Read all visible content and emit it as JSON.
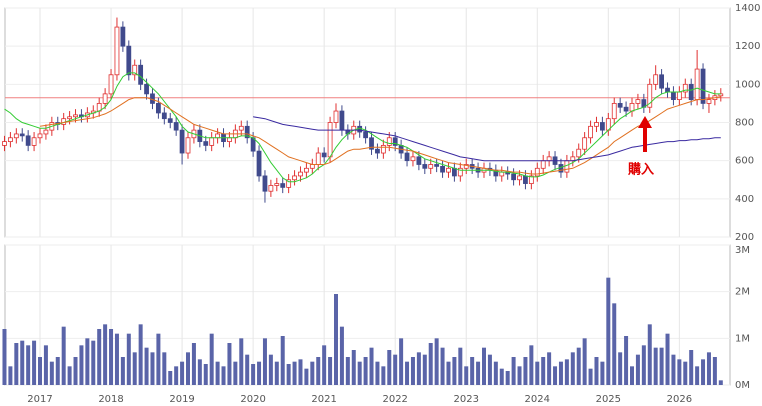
{
  "chart_data": [
    {
      "type": "candlestick",
      "categories": [
        null,
        null,
        null,
        null,
        null,
        null,
        "2017",
        null,
        null,
        null,
        null,
        null,
        null,
        null,
        null,
        null,
        null,
        null,
        "2018",
        null,
        null,
        null,
        null,
        null,
        null,
        null,
        null,
        null,
        null,
        null,
        "2019",
        null,
        null,
        null,
        null,
        null,
        null,
        null,
        null,
        null,
        null,
        null,
        "2020",
        null,
        null,
        null,
        null,
        null,
        null,
        null,
        null,
        null,
        null,
        null,
        "2021",
        null,
        null,
        null,
        null,
        null,
        null,
        null,
        null,
        null,
        null,
        null,
        "2022",
        null,
        null,
        null,
        null,
        null,
        null,
        null,
        null,
        null,
        null,
        null,
        "2023",
        null,
        null,
        null,
        null,
        null,
        null,
        null,
        null,
        null,
        null,
        null,
        "2024",
        null,
        null,
        null,
        null,
        null,
        null,
        null,
        null,
        null,
        null,
        null,
        "2025",
        null,
        null,
        null,
        null,
        null,
        null,
        null,
        null,
        null,
        null,
        null,
        "2026",
        null,
        null,
        null,
        null,
        null,
        null,
        null
      ],
      "open": [
        680,
        700,
        720,
        740,
        730,
        680,
        720,
        740,
        760,
        800,
        790,
        820,
        830,
        840,
        830,
        850,
        860,
        900,
        950,
        1050,
        1300,
        1200,
        1050,
        1100,
        1000,
        950,
        900,
        850,
        820,
        800,
        760,
        640,
        720,
        760,
        700,
        680,
        720,
        740,
        700,
        720,
        760,
        780,
        720,
        650,
        520,
        440,
        470,
        480,
        460,
        500,
        520,
        540,
        560,
        580,
        640,
        620,
        800,
        860,
        760,
        740,
        780,
        750,
        720,
        660,
        640,
        680,
        720,
        680,
        640,
        600,
        620,
        580,
        560,
        580,
        570,
        540,
        560,
        520,
        560,
        580,
        560,
        540,
        560,
        550,
        520,
        540,
        530,
        500,
        520,
        480,
        520,
        560,
        600,
        620,
        580,
        540,
        600,
        620,
        660,
        720,
        780,
        800,
        760,
        820,
        900,
        880,
        860,
        900,
        920,
        880,
        1000,
        1050,
        980,
        960,
        920,
        960,
        1000,
        920,
        1080,
        900,
        920,
        940
      ],
      "high": [
        730,
        750,
        770,
        770,
        760,
        750,
        770,
        790,
        830,
        830,
        850,
        860,
        870,
        870,
        880,
        890,
        930,
        980,
        1080,
        1350,
        1330,
        1230,
        1130,
        1130,
        1030,
        980,
        930,
        880,
        850,
        830,
        790,
        750,
        790,
        790,
        730,
        750,
        770,
        770,
        750,
        790,
        810,
        810,
        750,
        680,
        550,
        500,
        510,
        510,
        530,
        550,
        570,
        590,
        610,
        670,
        670,
        830,
        900,
        890,
        790,
        810,
        810,
        780,
        750,
        690,
        710,
        750,
        750,
        710,
        670,
        650,
        650,
        610,
        610,
        610,
        600,
        590,
        590,
        590,
        610,
        610,
        590,
        590,
        590,
        580,
        570,
        570,
        560,
        550,
        550,
        550,
        590,
        630,
        650,
        650,
        610,
        630,
        650,
        690,
        750,
        810,
        830,
        830,
        850,
        930,
        930,
        910,
        930,
        950,
        950,
        1030,
        1100,
        1080,
        1010,
        990,
        990,
        1030,
        1030,
        1180,
        1110,
        950,
        970,
        980
      ],
      "low": [
        650,
        670,
        690,
        700,
        650,
        650,
        690,
        710,
        730,
        760,
        760,
        790,
        800,
        800,
        800,
        820,
        830,
        870,
        920,
        1020,
        1170,
        1020,
        1020,
        970,
        920,
        870,
        820,
        790,
        770,
        730,
        580,
        610,
        690,
        670,
        650,
        650,
        690,
        670,
        670,
        690,
        730,
        690,
        620,
        490,
        380,
        410,
        440,
        430,
        430,
        470,
        490,
        510,
        530,
        550,
        590,
        590,
        770,
        730,
        710,
        710,
        720,
        690,
        630,
        610,
        610,
        650,
        650,
        610,
        570,
        570,
        550,
        530,
        530,
        540,
        510,
        510,
        490,
        490,
        530,
        530,
        510,
        510,
        520,
        490,
        490,
        500,
        470,
        470,
        450,
        450,
        490,
        530,
        570,
        550,
        510,
        510,
        570,
        590,
        630,
        690,
        750,
        730,
        730,
        790,
        850,
        830,
        830,
        870,
        850,
        850,
        970,
        950,
        930,
        890,
        890,
        930,
        890,
        890,
        870,
        850,
        890,
        910
      ],
      "close": [
        700,
        720,
        740,
        730,
        680,
        720,
        740,
        760,
        800,
        790,
        820,
        830,
        840,
        830,
        850,
        860,
        900,
        950,
        1050,
        1300,
        1200,
        1050,
        1100,
        1000,
        950,
        900,
        850,
        820,
        800,
        760,
        640,
        720,
        760,
        700,
        680,
        720,
        740,
        700,
        720,
        760,
        780,
        720,
        650,
        520,
        440,
        470,
        480,
        460,
        500,
        520,
        540,
        560,
        580,
        640,
        620,
        800,
        860,
        760,
        740,
        780,
        750,
        720,
        660,
        640,
        680,
        720,
        680,
        640,
        600,
        620,
        580,
        560,
        580,
        570,
        540,
        560,
        520,
        560,
        580,
        560,
        540,
        560,
        550,
        520,
        540,
        530,
        500,
        520,
        480,
        520,
        560,
        600,
        620,
        580,
        540,
        600,
        620,
        660,
        720,
        780,
        800,
        760,
        820,
        900,
        880,
        860,
        900,
        920,
        880,
        1000,
        1050,
        980,
        960,
        920,
        960,
        1000,
        920,
        1080,
        900,
        920,
        940,
        950
      ],
      "lines": [
        {
          "color": "#33cc33",
          "values": [
            870,
            850,
            820,
            800,
            790,
            780,
            770,
            770,
            780,
            790,
            800,
            810,
            820,
            830,
            840,
            850,
            860,
            880,
            920,
            990,
            1040,
            1060,
            1060,
            1040,
            1010,
            980,
            950,
            910,
            870,
            830,
            780,
            750,
            740,
            730,
            720,
            720,
            720,
            720,
            720,
            720,
            730,
            730,
            720,
            690,
            640,
            590,
            550,
            510,
            490,
            490,
            500,
            510,
            530,
            560,
            580,
            620,
            670,
            710,
            740,
            760,
            770,
            760,
            740,
            720,
            700,
            690,
            690,
            680,
            670,
            650,
            630,
            610,
            600,
            590,
            580,
            570,
            560,
            550,
            550,
            550,
            550,
            550,
            550,
            545,
            540,
            540,
            535,
            530,
            520,
            515,
            515,
            525,
            540,
            555,
            565,
            575,
            590,
            610,
            640,
            670,
            700,
            730,
            760,
            790,
            820,
            840,
            860,
            870,
            880,
            900,
            930,
            950,
            960,
            960,
            960,
            970,
            970,
            980,
            970,
            960,
            950,
            950
          ]
        },
        {
          "color": "#e07020",
          "values": [
            null,
            null,
            null,
            null,
            null,
            null,
            780,
            785,
            790,
            795,
            800,
            805,
            810,
            815,
            820,
            825,
            835,
            845,
            860,
            880,
            900,
            920,
            930,
            930,
            930,
            920,
            910,
            890,
            870,
            850,
            830,
            810,
            790,
            780,
            770,
            760,
            750,
            740,
            740,
            740,
            740,
            740,
            730,
            720,
            700,
            680,
            660,
            640,
            620,
            610,
            600,
            590,
            580,
            580,
            580,
            590,
            610,
            630,
            650,
            660,
            660,
            665,
            670,
            670,
            670,
            670,
            665,
            660,
            655,
            650,
            640,
            630,
            620,
            610,
            600,
            590,
            585,
            580,
            575,
            570,
            565,
            560,
            555,
            550,
            550,
            545,
            540,
            540,
            535,
            530,
            530,
            535,
            540,
            545,
            550,
            555,
            560,
            575,
            590,
            610,
            630,
            650,
            670,
            700,
            720,
            740,
            760,
            780,
            790,
            810,
            830,
            850,
            870,
            880,
            890,
            900,
            910,
            920,
            920,
            925,
            930,
            935
          ]
        },
        {
          "color": "#3a2aa0",
          "values": [
            null,
            null,
            null,
            null,
            null,
            null,
            null,
            null,
            null,
            null,
            null,
            null,
            null,
            null,
            null,
            null,
            null,
            null,
            null,
            null,
            null,
            null,
            null,
            null,
            null,
            null,
            null,
            null,
            null,
            null,
            null,
            null,
            null,
            null,
            null,
            null,
            null,
            null,
            null,
            null,
            null,
            null,
            830,
            825,
            820,
            810,
            800,
            790,
            785,
            780,
            775,
            770,
            765,
            760,
            760,
            760,
            760,
            760,
            760,
            760,
            760,
            755,
            750,
            745,
            740,
            735,
            730,
            720,
            710,
            700,
            690,
            680,
            670,
            660,
            650,
            640,
            630,
            620,
            615,
            610,
            605,
            600,
            600,
            600,
            600,
            600,
            600,
            600,
            600,
            600,
            600,
            600,
            600,
            600,
            600,
            600,
            600,
            605,
            610,
            615,
            620,
            625,
            630,
            640,
            650,
            660,
            670,
            675,
            680,
            685,
            690,
            695,
            700,
            700,
            705,
            705,
            710,
            710,
            715,
            715,
            720,
            720
          ]
        }
      ],
      "hline": {
        "value": 930,
        "color": "#f08080"
      },
      "annotation": "購入",
      "up_color": "#e03030",
      "down_color": "#404a8c",
      "ylim": [
        200,
        1400
      ],
      "yticks": [
        200,
        400,
        600,
        800,
        1000,
        1200,
        1400
      ],
      "grid": true
    },
    {
      "type": "bar",
      "values": [
        1200000,
        400000,
        900000,
        950000,
        850000,
        950000,
        600000,
        850000,
        500000,
        600000,
        1250000,
        400000,
        600000,
        850000,
        1000000,
        950000,
        1200000,
        1300000,
        1200000,
        1100000,
        600000,
        1100000,
        700000,
        1300000,
        800000,
        700000,
        1100000,
        700000,
        300000,
        400000,
        500000,
        700000,
        900000,
        550000,
        450000,
        1100000,
        500000,
        400000,
        900000,
        500000,
        1000000,
        650000,
        450000,
        500000,
        1000000,
        650000,
        500000,
        1050000,
        450000,
        500000,
        550000,
        350000,
        500000,
        600000,
        850000,
        600000,
        1950000,
        1250000,
        600000,
        750000,
        500000,
        600000,
        800000,
        500000,
        400000,
        750000,
        650000,
        1000000,
        500000,
        600000,
        700000,
        650000,
        900000,
        1000000,
        800000,
        500000,
        600000,
        800000,
        400000,
        600000,
        500000,
        800000,
        650000,
        500000,
        350000,
        300000,
        600000,
        400000,
        600000,
        850000,
        500000,
        600000,
        700000,
        400000,
        500000,
        550000,
        700000,
        800000,
        1000000,
        350000,
        600000,
        500000,
        2300000,
        1750000,
        700000,
        1050000,
        400000,
        650000,
        850000,
        1300000,
        800000,
        800000,
        1100000,
        650000,
        550000,
        500000,
        750000,
        400000,
        550000,
        700000,
        600000,
        100000
      ],
      "color": "#5a64a8",
      "ylim": [
        0,
        3000000
      ],
      "yticks": [
        {
          "value": 0,
          "label": "0M"
        },
        {
          "value": 1000000,
          "label": "1M"
        },
        {
          "value": 2000000,
          "label": "2M"
        },
        {
          "value": 3000000,
          "label": "3M"
        }
      ]
    }
  ]
}
